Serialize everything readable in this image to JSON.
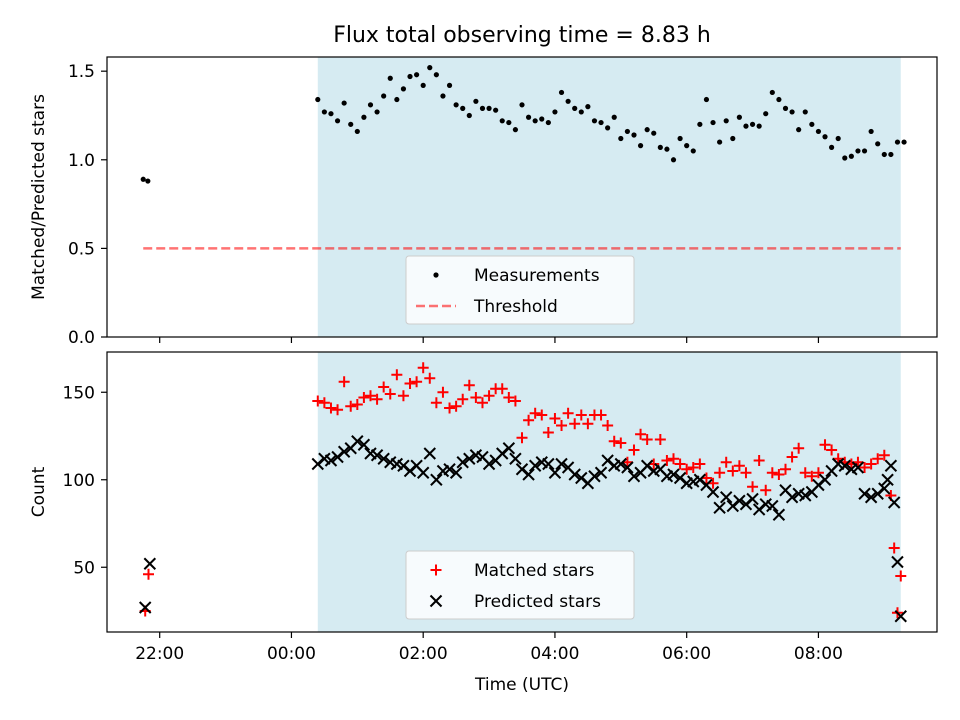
{
  "title": "Flux total observing time = 8.83 h",
  "colors": {
    "shade": "#add8e6",
    "threshold": "#ff0000",
    "matched": "#ff0000",
    "predicted": "#000000",
    "measurements": "#000000"
  },
  "chart_data": [
    {
      "type": "scatter",
      "ylabel": "Matched/Predicted stars",
      "ylim": [
        0,
        1.58
      ],
      "yticks": [
        "0.0",
        "0.5",
        "1.0",
        "1.5"
      ],
      "ytick_values": [
        0,
        0.5,
        1.0,
        1.5
      ],
      "xlim": [
        -2.8,
        9.8
      ],
      "shaded_span": [
        0.4,
        9.25
      ],
      "legend_position": "lower-center",
      "series": [
        {
          "name": "Measurements",
          "marker": "dot",
          "x": [
            -2.25,
            -2.18,
            0.4,
            0.5,
            0.6,
            0.7,
            0.8,
            0.9,
            1.0,
            1.1,
            1.2,
            1.3,
            1.4,
            1.5,
            1.6,
            1.7,
            1.8,
            1.9,
            2.0,
            2.1,
            2.2,
            2.3,
            2.4,
            2.5,
            2.6,
            2.7,
            2.8,
            2.9,
            3.0,
            3.1,
            3.2,
            3.3,
            3.4,
            3.5,
            3.6,
            3.7,
            3.8,
            3.9,
            4.0,
            4.1,
            4.2,
            4.3,
            4.4,
            4.5,
            4.6,
            4.7,
            4.8,
            4.9,
            5.0,
            5.1,
            5.2,
            5.3,
            5.4,
            5.5,
            5.6,
            5.7,
            5.8,
            5.9,
            6.0,
            6.1,
            6.2,
            6.3,
            6.4,
            6.5,
            6.6,
            6.7,
            6.8,
            6.9,
            7.0,
            7.1,
            7.2,
            7.3,
            7.4,
            7.5,
            7.6,
            7.7,
            7.8,
            7.9,
            8.0,
            8.1,
            8.2,
            8.3,
            8.4,
            8.5,
            8.6,
            8.7,
            8.8,
            8.9,
            9.0,
            9.1,
            9.2,
            9.3
          ],
          "y": [
            0.89,
            0.88,
            1.34,
            1.27,
            1.26,
            1.22,
            1.32,
            1.2,
            1.16,
            1.24,
            1.31,
            1.27,
            1.36,
            1.46,
            1.34,
            1.4,
            1.47,
            1.48,
            1.42,
            1.52,
            1.48,
            1.36,
            1.42,
            1.31,
            1.29,
            1.25,
            1.33,
            1.29,
            1.29,
            1.28,
            1.22,
            1.21,
            1.17,
            1.31,
            1.24,
            1.22,
            1.23,
            1.21,
            1.27,
            1.38,
            1.33,
            1.29,
            1.27,
            1.3,
            1.22,
            1.21,
            1.18,
            1.24,
            1.12,
            1.16,
            1.14,
            1.08,
            1.17,
            1.15,
            1.07,
            1.06,
            1.0,
            1.12,
            1.08,
            1.05,
            1.2,
            1.34,
            1.21,
            1.1,
            1.22,
            1.12,
            1.24,
            1.19,
            1.2,
            1.19,
            1.26,
            1.38,
            1.34,
            1.29,
            1.27,
            1.17,
            1.27,
            1.2,
            1.16,
            1.13,
            1.07,
            1.12,
            1.01,
            1.02,
            1.05,
            1.05,
            1.16,
            1.09,
            1.03,
            1.03,
            1.1,
            1.1
          ]
        },
        {
          "name": "Threshold",
          "marker": "dashed-line",
          "x": [
            -2.25,
            9.25
          ],
          "y": [
            0.5,
            0.5
          ]
        }
      ]
    },
    {
      "type": "scatter",
      "ylabel": "Count",
      "xlabel": "Time (UTC)",
      "ylim": [
        13,
        173
      ],
      "yticks": [
        "50",
        "100",
        "150"
      ],
      "ytick_values": [
        50,
        100,
        150
      ],
      "xlim": [
        -2.8,
        9.8
      ],
      "xticks": [
        "22:00",
        "00:00",
        "02:00",
        "04:00",
        "06:00",
        "08:00"
      ],
      "xtick_values": [
        -2,
        0,
        2,
        4,
        6,
        8
      ],
      "shaded_span": [
        0.4,
        9.25
      ],
      "legend_position": "lower-center",
      "series": [
        {
          "name": "Matched stars",
          "marker": "plus",
          "x": [
            -2.22,
            -2.17,
            0.4,
            0.5,
            0.6,
            0.7,
            0.8,
            0.9,
            1.0,
            1.1,
            1.2,
            1.3,
            1.4,
            1.5,
            1.6,
            1.7,
            1.8,
            1.9,
            2.0,
            2.1,
            2.2,
            2.3,
            2.4,
            2.5,
            2.6,
            2.7,
            2.8,
            2.9,
            3.0,
            3.1,
            3.2,
            3.3,
            3.4,
            3.5,
            3.6,
            3.7,
            3.8,
            3.9,
            4.0,
            4.1,
            4.2,
            4.3,
            4.4,
            4.5,
            4.6,
            4.7,
            4.8,
            4.9,
            5.0,
            5.1,
            5.2,
            5.3,
            5.4,
            5.5,
            5.6,
            5.7,
            5.8,
            5.9,
            6.0,
            6.1,
            6.2,
            6.3,
            6.4,
            6.5,
            6.6,
            6.7,
            6.8,
            6.9,
            7.0,
            7.1,
            7.2,
            7.3,
            7.4,
            7.5,
            7.6,
            7.7,
            7.8,
            7.9,
            8.0,
            8.1,
            8.2,
            8.3,
            8.4,
            8.5,
            8.6,
            8.7,
            8.8,
            8.9,
            9.0,
            9.1,
            9.15,
            9.2,
            9.25
          ],
          "y": [
            25,
            46,
            145,
            144,
            141,
            140,
            156,
            142,
            143,
            147,
            148,
            146,
            153,
            149,
            160,
            148,
            155,
            156,
            164,
            158,
            144,
            150,
            141,
            142,
            146,
            154,
            147,
            144,
            148,
            152,
            152,
            147,
            145,
            124,
            134,
            138,
            137,
            127,
            135,
            131,
            138,
            132,
            137,
            132,
            137,
            137,
            131,
            122,
            121,
            110,
            117,
            126,
            123,
            109,
            123,
            111,
            112,
            109,
            106,
            107,
            109,
            101,
            98,
            104,
            110,
            105,
            108,
            104,
            96,
            111,
            94,
            104,
            103,
            106,
            113,
            118,
            104,
            102,
            104,
            120,
            117,
            112,
            110,
            109,
            110,
            107,
            109,
            112,
            114,
            91,
            61,
            24,
            45
          ]
        },
        {
          "name": "Predicted stars",
          "marker": "x",
          "x": [
            -2.22,
            -2.15,
            0.4,
            0.5,
            0.6,
            0.7,
            0.8,
            0.9,
            1.0,
            1.1,
            1.2,
            1.3,
            1.4,
            1.5,
            1.6,
            1.7,
            1.8,
            1.9,
            2.0,
            2.1,
            2.2,
            2.3,
            2.4,
            2.5,
            2.6,
            2.7,
            2.8,
            2.9,
            3.0,
            3.1,
            3.2,
            3.3,
            3.4,
            3.5,
            3.6,
            3.7,
            3.8,
            3.9,
            4.0,
            4.1,
            4.2,
            4.3,
            4.4,
            4.5,
            4.6,
            4.7,
            4.8,
            4.9,
            5.0,
            5.1,
            5.2,
            5.3,
            5.4,
            5.5,
            5.6,
            5.7,
            5.8,
            5.9,
            6.0,
            6.1,
            6.2,
            6.3,
            6.4,
            6.5,
            6.6,
            6.7,
            6.8,
            6.9,
            7.0,
            7.1,
            7.2,
            7.3,
            7.4,
            7.5,
            7.6,
            7.7,
            7.8,
            7.9,
            8.0,
            8.1,
            8.2,
            8.3,
            8.4,
            8.5,
            8.6,
            8.7,
            8.8,
            8.9,
            9.0,
            9.05,
            9.1,
            9.15,
            9.2,
            9.25
          ],
          "y": [
            27,
            52,
            109,
            112,
            111,
            113,
            116,
            118,
            122,
            120,
            115,
            114,
            112,
            110,
            109,
            108,
            105,
            108,
            104,
            115,
            100,
            105,
            106,
            104,
            110,
            112,
            114,
            113,
            109,
            111,
            115,
            118,
            112,
            106,
            103,
            108,
            110,
            109,
            104,
            109,
            107,
            103,
            101,
            98,
            102,
            104,
            111,
            108,
            109,
            107,
            102,
            104,
            108,
            105,
            106,
            102,
            103,
            101,
            98,
            99,
            100,
            97,
            93,
            84,
            90,
            85,
            88,
            86,
            89,
            83,
            86,
            85,
            80,
            94,
            90,
            92,
            91,
            93,
            97,
            100,
            105,
            109,
            108,
            106,
            107,
            92,
            90,
            92,
            95,
            100,
            108,
            87,
            53,
            22
          ]
        }
      ]
    }
  ]
}
